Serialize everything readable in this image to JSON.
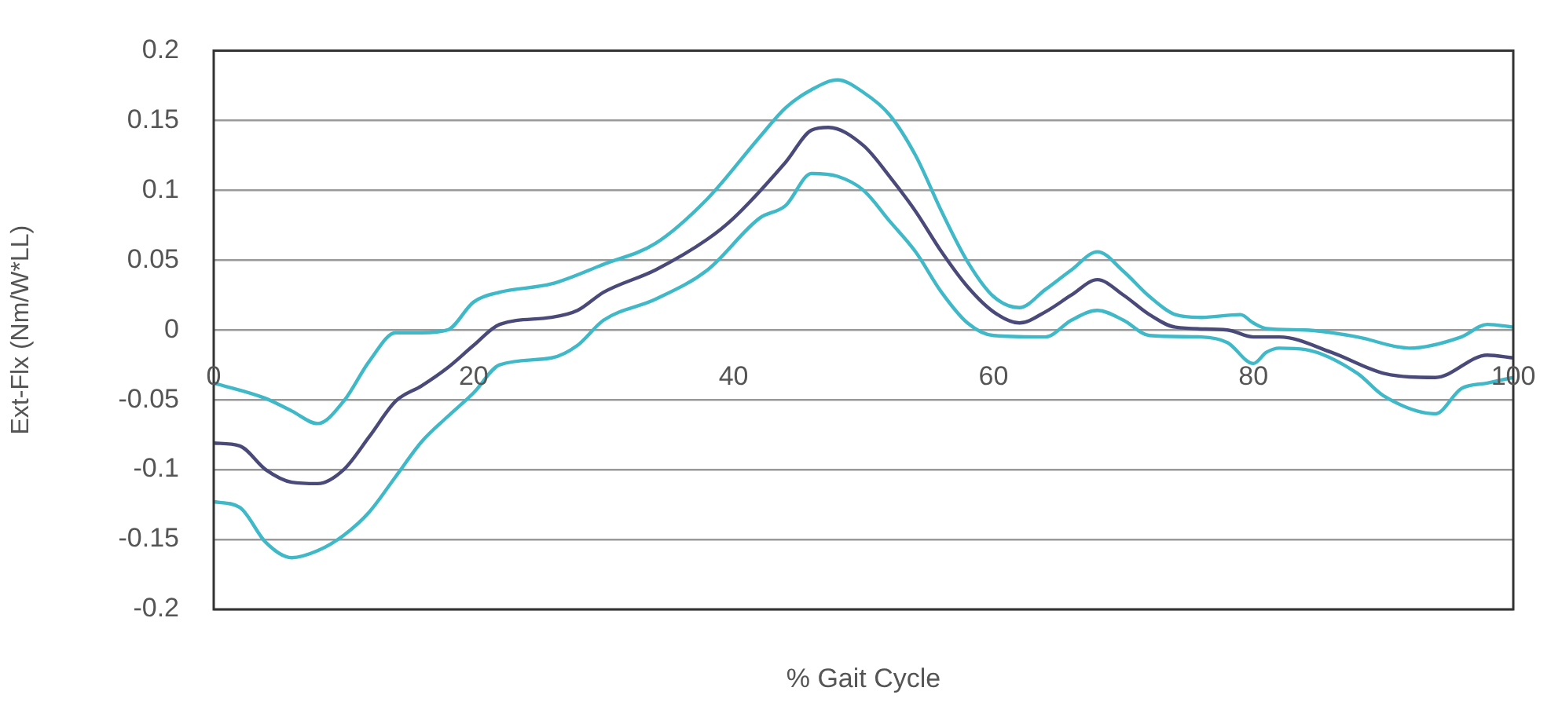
{
  "chart_data": {
    "type": "line",
    "xlabel": "% Gait Cycle",
    "ylabel": "Ext-Flx (Nm/W*LL)",
    "xlim": [
      0,
      100
    ],
    "xticks": [
      0,
      20,
      40,
      60,
      80,
      100
    ],
    "ylim": [
      -0.2,
      0.2
    ],
    "yticks": [
      -0.2,
      -0.15,
      -0.1,
      -0.05,
      0,
      0.05,
      0.1,
      0.15,
      0.2
    ],
    "grid": "y",
    "legend": false,
    "marker": "none",
    "line_style": "solid",
    "series": [
      {
        "color": "#3fb8c8",
        "x": [
          0,
          4,
          6,
          8,
          10,
          12,
          14,
          16,
          18,
          20,
          22,
          26,
          30,
          34,
          38,
          42,
          44,
          46,
          48,
          50,
          52,
          54,
          56,
          58,
          60,
          62,
          64,
          66,
          68,
          70,
          72,
          74,
          76,
          79,
          80,
          81,
          84,
          88,
          92,
          96,
          98,
          100
        ],
        "values": [
          -0.038,
          -0.049,
          -0.058,
          -0.067,
          -0.051,
          -0.022,
          -0.002,
          -0.002,
          0,
          0.02,
          0.027,
          0.033,
          0.047,
          0.062,
          0.094,
          0.138,
          0.159,
          0.172,
          0.179,
          0.17,
          0.154,
          0.125,
          0.085,
          0.049,
          0.024,
          0.016,
          0.029,
          0.043,
          0.056,
          0.042,
          0.024,
          0.011,
          0.009,
          0.011,
          0.005,
          0.001,
          0,
          -0.005,
          -0.013,
          -0.005,
          0.004,
          0.002
        ]
      },
      {
        "color": "#4a4a7a",
        "x": [
          0,
          2,
          4,
          6,
          8,
          10,
          12,
          14,
          16,
          18,
          20,
          22,
          26,
          28,
          30,
          34,
          38,
          40,
          44,
          46,
          47.3,
          50,
          52,
          54,
          56,
          58,
          60,
          62,
          64,
          66,
          68,
          70,
          72,
          74,
          78,
          80,
          82,
          86,
          90,
          94,
          98,
          100
        ],
        "values": [
          -0.081,
          -0.083,
          -0.1,
          -0.109,
          -0.11,
          -0.1,
          -0.076,
          -0.051,
          -0.04,
          -0.027,
          -0.011,
          0.004,
          0.009,
          0.014,
          0.027,
          0.043,
          0.065,
          0.08,
          0.12,
          0.143,
          0.145,
          0.132,
          0.11,
          0.085,
          0.056,
          0.031,
          0.013,
          0.005,
          0.013,
          0.025,
          0.036,
          0.025,
          0.011,
          0.002,
          0,
          -0.005,
          -0.005,
          -0.016,
          -0.031,
          -0.034,
          -0.018,
          -0.02
        ]
      },
      {
        "color": "#3fb8c8",
        "x": [
          0,
          2,
          4,
          6,
          8,
          10,
          12,
          14,
          16,
          18,
          20,
          22,
          26,
          28,
          30,
          34,
          38,
          42,
          44,
          46,
          48,
          50,
          52,
          54,
          56,
          58,
          60,
          64,
          66,
          68,
          70,
          72,
          76,
          78,
          80,
          81,
          82,
          84,
          88,
          90,
          94,
          96,
          98,
          100
        ],
        "values": [
          -0.123,
          -0.127,
          -0.152,
          -0.163,
          -0.158,
          -0.147,
          -0.13,
          -0.105,
          -0.08,
          -0.062,
          -0.045,
          -0.025,
          -0.02,
          -0.011,
          0.007,
          0.022,
          0.043,
          0.08,
          0.089,
          0.112,
          0.11,
          0.1,
          0.078,
          0.056,
          0.027,
          0.005,
          -0.004,
          -0.005,
          0.007,
          0.014,
          0.007,
          -0.004,
          -0.005,
          -0.009,
          -0.024,
          -0.016,
          -0.013,
          -0.014,
          -0.031,
          -0.047,
          -0.06,
          -0.042,
          -0.038,
          -0.034
        ]
      }
    ]
  }
}
